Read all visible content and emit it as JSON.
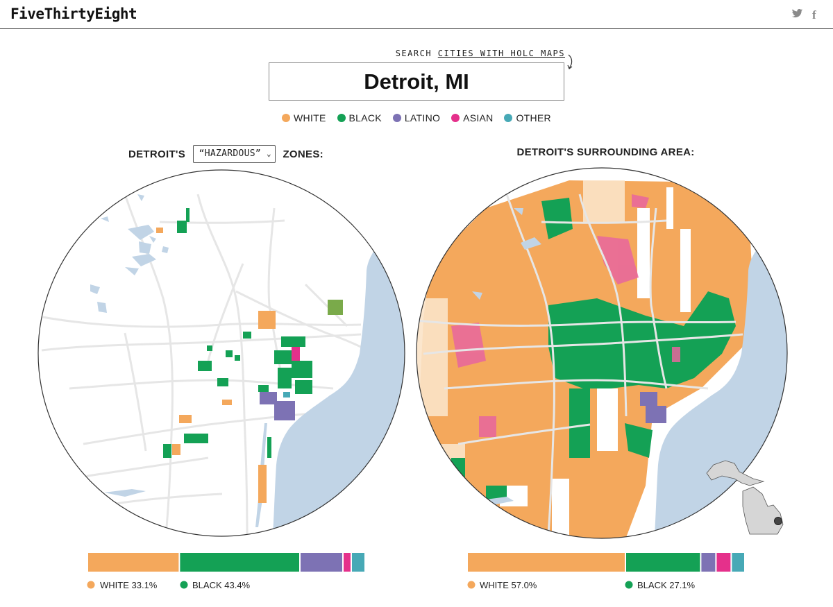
{
  "header": {
    "brand": "FiveThirtyEight",
    "twitter_icon": "twitter-icon",
    "facebook_icon": "facebook-icon"
  },
  "search": {
    "label_prefix": "SEARCH ",
    "label_link": "CITIES WITH HOLC MAPS",
    "value": "Detroit, MI"
  },
  "legend": [
    {
      "label": "WHITE",
      "color": "#f4a85c"
    },
    {
      "label": "BLACK",
      "color": "#14a155"
    },
    {
      "label": "LATINO",
      "color": "#7d72b4"
    },
    {
      "label": "ASIAN",
      "color": "#e5308b"
    },
    {
      "label": "OTHER",
      "color": "#47a9b6"
    }
  ],
  "left_panel": {
    "heading_prefix": "DETROIT'S",
    "zone_selected": "“HAZARDOUS”",
    "heading_suffix": "ZONES:",
    "composition": [
      33.1,
      43.4,
      15.5,
      3.0,
      5.0
    ],
    "pct_white": "WHITE 33.1%",
    "pct_black": "BLACK 43.4%"
  },
  "right_panel": {
    "heading": "DETROIT'S SURROUNDING AREA:",
    "composition": [
      57.0,
      27.1,
      5.5,
      5.5,
      4.9
    ],
    "pct_white": "WHITE 57.0%",
    "pct_black": "BLACK 27.1%"
  },
  "colors": {
    "water": "#c1d4e6",
    "road": "#e6e6e6",
    "border": "#333333",
    "michigan": "#d6d6d6"
  }
}
